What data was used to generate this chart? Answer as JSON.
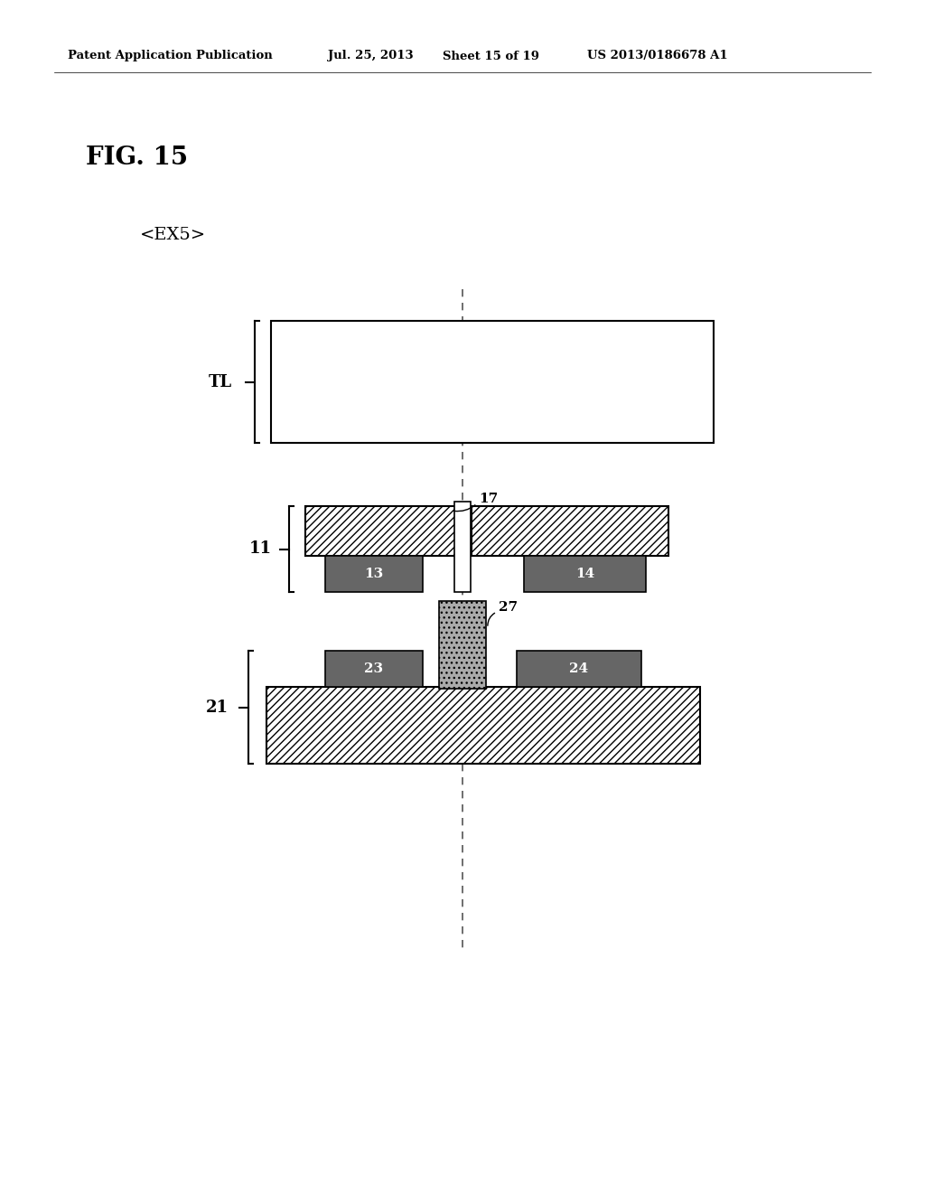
{
  "bg_color": "#ffffff",
  "header_text": "Patent Application Publication",
  "header_date": "Jul. 25, 2013",
  "header_sheet": "Sheet 15 of 19",
  "header_patent": "US 2013/0186678 A1",
  "fig_label": "FIG. 15",
  "ex_label": "<EX5>",
  "label_TL": "TL",
  "label_11": "11",
  "label_21": "21",
  "label_13": "13",
  "label_14": "14",
  "label_17": "17",
  "label_23": "23",
  "label_24": "24",
  "label_27": "27",
  "pad_color": "#666666",
  "bump_color": "#aaaaaa",
  "hatch_pattern": "////",
  "outline_color": "#000000"
}
